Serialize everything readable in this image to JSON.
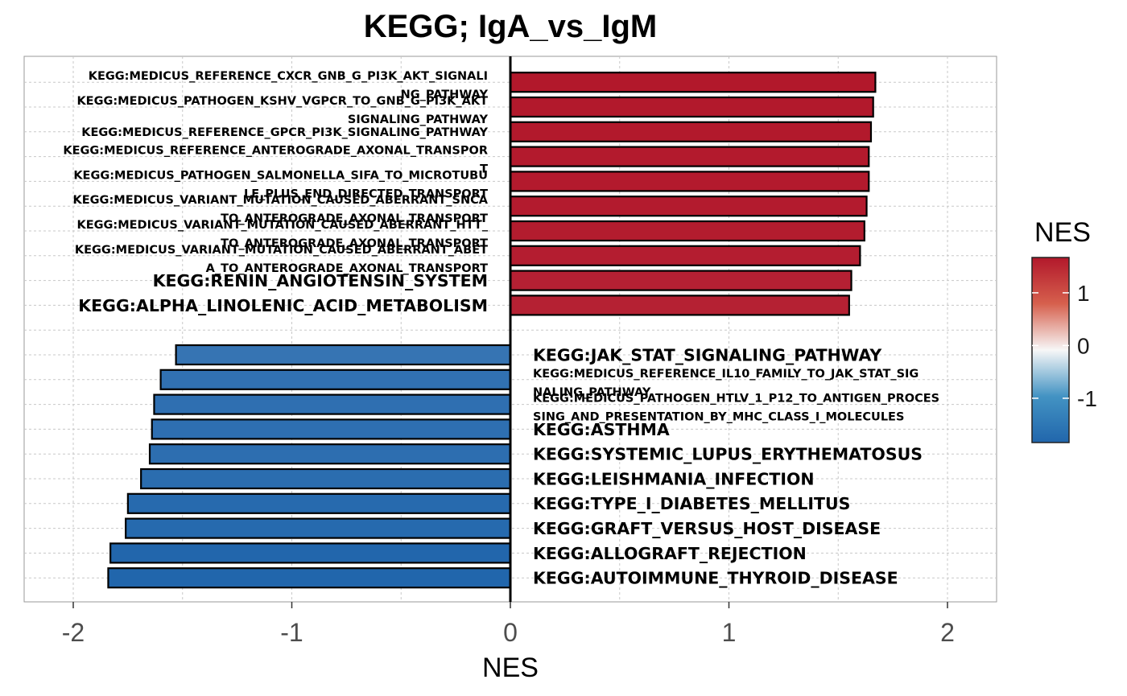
{
  "chart_data": {
    "type": "bar",
    "orientation": "horizontal",
    "title": "KEGG; IgA_vs_IgM",
    "xlabel": "NES",
    "ylabel": "",
    "xlim": [
      -2.22,
      2.22
    ],
    "xticks": [
      -2,
      -1,
      0,
      1,
      2
    ],
    "xtick_labels": [
      "-2",
      "-1",
      "0",
      "1",
      "2"
    ],
    "grid": true,
    "legend": {
      "title": "NES",
      "position": "right",
      "ticks": [
        1,
        0,
        -1
      ],
      "tick_labels": [
        "1",
        "0",
        "-1"
      ],
      "range": [
        -1.84,
        1.67
      ],
      "colors": {
        "low": "#2166AC",
        "mid": "#F7F7F7",
        "high": "#B2182B"
      }
    },
    "bars": [
      {
        "label": "KEGG:MEDICUS_REFERENCE_CXCR_GNB_G_PI3K_AKT_SIGNALING_PATHWAY",
        "lines": [
          "KEGG:MEDICUS_REFERENCE_CXCR_GNB_G_PI3K_AKT_SIGNALI",
          "NG_PATHWAY"
        ],
        "value": 1.67
      },
      {
        "label": "KEGG:MEDICUS_PATHOGEN_KSHV_VGPCR_TO_GNB_G_PI3K_AKT_SIGNALING_PATHWAY",
        "lines": [
          "KEGG:MEDICUS_PATHOGEN_KSHV_VGPCR_TO_GNB_G_PI3K_AKT",
          "SIGNALING_PATHWAY"
        ],
        "value": 1.66
      },
      {
        "label": "KEGG:MEDICUS_REFERENCE_GPCR_PI3K_SIGNALING_PATHWAY",
        "lines": [
          "KEGG:MEDICUS_REFERENCE_GPCR_PI3K_SIGNALING_PATHWAY"
        ],
        "value": 1.65
      },
      {
        "label": "KEGG:MEDICUS_REFERENCE_ANTEROGRADE_AXONAL_TRANSPORT",
        "lines": [
          "KEGG:MEDICUS_REFERENCE_ANTEROGRADE_AXONAL_TRANSPOR",
          "T"
        ],
        "value": 1.64
      },
      {
        "label": "KEGG:MEDICUS_PATHOGEN_SALMONELLA_SIFA_TO_MICROTUBULE_PLUS_END_DIRECTED_TRANSPORT",
        "lines": [
          "KEGG:MEDICUS_PATHOGEN_SALMONELLA_SIFA_TO_MICROTUBU",
          "LE_PLUS_END_DIRECTED_TRANSPORT"
        ],
        "value": 1.64
      },
      {
        "label": "KEGG:MEDICUS_VARIANT_MUTATION_CAUSED_ABERRANT_SNCA_TO_ANTEROGRADE_AXONAL_TRANSPORT",
        "lines": [
          "KEGG:MEDICUS_VARIANT_MUTATION_CAUSED_ABERRANT_SNCA",
          "TO_ANTEROGRADE_AXONAL_TRANSPORT"
        ],
        "value": 1.63
      },
      {
        "label": "KEGG:MEDICUS_VARIANT_MUTATION_CAUSED_ABERRANT_HTT_TO_ANTEROGRADE_AXONAL_TRANSPORT",
        "lines": [
          "KEGG:MEDICUS_VARIANT_MUTATION_CAUSED_ABERRANT_HTT_",
          "TO_ANTEROGRADE_AXONAL_TRANSPORT"
        ],
        "value": 1.62
      },
      {
        "label": "KEGG:MEDICUS_VARIANT_MUTATION_CAUSED_ABERRANT_ABETA_TO_ANTEROGRADE_AXONAL_TRANSPORT",
        "lines": [
          "KEGG:MEDICUS_VARIANT_MUTATION_CAUSED_ABERRANT_ABET",
          "A_TO_ANTEROGRADE_AXONAL_TRANSPORT"
        ],
        "value": 1.6
      },
      {
        "label": "KEGG:RENIN_ANGIOTENSIN_SYSTEM",
        "lines": [
          "KEGG:RENIN_ANGIOTENSIN_SYSTEM"
        ],
        "value": 1.56
      },
      {
        "label": "KEGG:ALPHA_LINOLENIC_ACID_METABOLISM",
        "lines": [
          "KEGG:ALPHA_LINOLENIC_ACID_METABOLISM"
        ],
        "value": 1.55
      },
      {
        "label": "",
        "lines": [],
        "value": null
      },
      {
        "label": "KEGG:JAK_STAT_SIGNALING_PATHWAY",
        "lines": [
          "KEGG:JAK_STAT_SIGNALING_PATHWAY"
        ],
        "value": -1.53
      },
      {
        "label": "KEGG:MEDICUS_REFERENCE_IL10_FAMILY_TO_JAK_STAT_SIGNALING_PATHWAY",
        "lines": [
          "KEGG:MEDICUS_REFERENCE_IL10_FAMILY_TO_JAK_STAT_SIG",
          "NALING_PATHWAY"
        ],
        "value": -1.6
      },
      {
        "label": "KEGG:MEDICUS_PATHOGEN_HTLV_1_P12_TO_ANTIGEN_PROCESSING_AND_PRESENTATION_BY_MHC_CLASS_I_MOLECULES",
        "lines": [
          "KEGG:MEDICUS_PATHOGEN_HTLV_1_P12_TO_ANTIGEN_PROCES",
          "SING_AND_PRESENTATION_BY_MHC_CLASS_I_MOLECULES"
        ],
        "value": -1.63
      },
      {
        "label": "KEGG:ASTHMA",
        "lines": [
          "KEGG:ASTHMA"
        ],
        "value": -1.64
      },
      {
        "label": "KEGG:SYSTEMIC_LUPUS_ERYTHEMATOSUS",
        "lines": [
          "KEGG:SYSTEMIC_LUPUS_ERYTHEMATOSUS"
        ],
        "value": -1.65
      },
      {
        "label": "KEGG:LEISHMANIA_INFECTION",
        "lines": [
          "KEGG:LEISHMANIA_INFECTION"
        ],
        "value": -1.69
      },
      {
        "label": "KEGG:TYPE_I_DIABETES_MELLITUS",
        "lines": [
          "KEGG:TYPE_I_DIABETES_MELLITUS"
        ],
        "value": -1.75
      },
      {
        "label": "KEGG:GRAFT_VERSUS_HOST_DISEASE",
        "lines": [
          "KEGG:GRAFT_VERSUS_HOST_DISEASE"
        ],
        "value": -1.76
      },
      {
        "label": "KEGG:ALLOGRAFT_REJECTION",
        "lines": [
          "KEGG:ALLOGRAFT_REJECTION"
        ],
        "value": -1.83
      },
      {
        "label": "KEGG:AUTOIMMUNE_THYROID_DISEASE",
        "lines": [
          "KEGG:AUTOIMMUNE_THYROID_DISEASE"
        ],
        "value": -1.84
      }
    ]
  }
}
